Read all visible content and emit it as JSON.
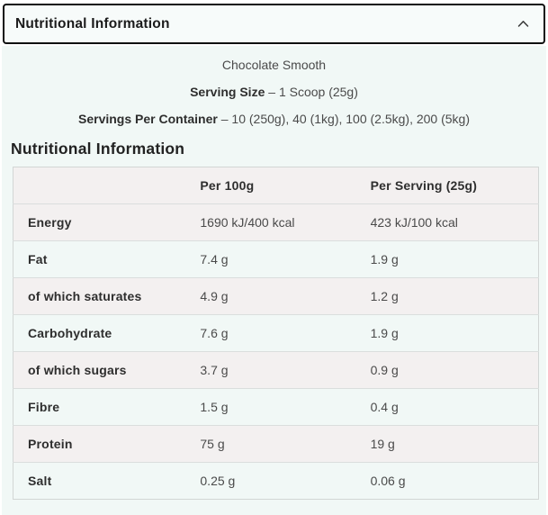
{
  "accordion": {
    "title": "Nutritional Information",
    "icon": "chevron-up"
  },
  "product": {
    "flavour": "Chocolate Smooth",
    "serving_size_label": "Serving Size",
    "separator": "–",
    "serving_size_value": "1 Scoop (25g)",
    "servings_per_container_label": "Servings Per Container",
    "servings_per_container_value": "10 (250g), 40 (1kg), 100 (2.5kg), 200 (5kg)"
  },
  "table": {
    "heading": "Nutritional Information",
    "columns": [
      "",
      "Per 100g",
      "Per Serving (25g)"
    ],
    "rows": [
      {
        "label": "Energy",
        "per_100g": "1690 kJ/400 kcal",
        "per_serving": "423 kJ/100 kcal"
      },
      {
        "label": "Fat",
        "per_100g": "7.4 g",
        "per_serving": "1.9 g"
      },
      {
        "label": "of which saturates",
        "per_100g": "4.9 g",
        "per_serving": "1.2 g"
      },
      {
        "label": "Carbohydrate",
        "per_100g": "7.6 g",
        "per_serving": "1.9 g"
      },
      {
        "label": "of which sugars",
        "per_100g": "3.7 g",
        "per_serving": "0.9 g"
      },
      {
        "label": "Fibre",
        "per_100g": "1.5 g",
        "per_serving": "0.4 g"
      },
      {
        "label": "Protein",
        "per_100g": "75 g",
        "per_serving": "19 g"
      },
      {
        "label": "Salt",
        "per_100g": "0.25 g",
        "per_serving": "0.06 g"
      }
    ]
  },
  "colors": {
    "accordion_border": "#101010",
    "accordion_bg": "#f7fbfa",
    "panel_bg": "#f1f8f6",
    "row_shaded_bg": "#f3f0f0",
    "table_border": "#d2d6d5",
    "row_border": "#dadedd",
    "heading_text": "#222222",
    "label_text": "#2e2e2e",
    "value_text": "#4a4a4a"
  }
}
